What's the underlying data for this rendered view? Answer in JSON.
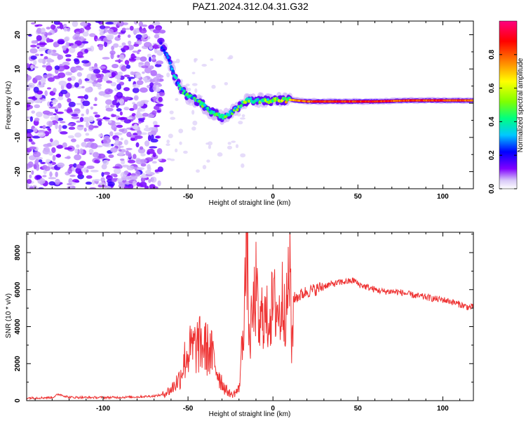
{
  "title": "PAZ1.2024.312.04.31.G32",
  "chart_data": [
    {
      "type": "heatmap",
      "xlabel": "Height of straight line (km)",
      "ylabel": "Frequency (Hz)",
      "xlim": [
        -145,
        118
      ],
      "ylim": [
        -25,
        24
      ],
      "x_ticks": [
        -100,
        -50,
        0,
        50,
        100
      ],
      "x_tick_labels": [
        "-100",
        "-50",
        "0",
        "50",
        "100"
      ],
      "y_ticks": [
        -20,
        -10,
        0,
        10,
        20
      ],
      "y_tick_labels": [
        "-20",
        "-10",
        "0",
        "10",
        "20"
      ],
      "colorbar": {
        "label": "Normalized spectral amplitude",
        "range": [
          0,
          1
        ],
        "ticks": [
          0.0,
          0.2,
          0.4,
          0.6,
          0.8
        ],
        "tick_labels": [
          "0.0",
          "0.2",
          "0.4",
          "0.6",
          "0.8"
        ],
        "colormap": [
          "#ffffff",
          "#d8c8f8",
          "#8000ff",
          "#0000ff",
          "#00c8ff",
          "#00ff80",
          "#80ff00",
          "#ffff00",
          "#ff8000",
          "#ff0000",
          "#ff0080"
        ]
      },
      "ridge": {
        "x": [
          -66,
          -62,
          -58,
          -54,
          -50,
          -46,
          -42,
          -38,
          -34,
          -30,
          -26,
          -22,
          -18,
          -14,
          -10,
          -6,
          -2,
          2,
          6,
          10,
          20,
          40,
          60,
          80,
          100,
          118
        ],
        "frequency": [
          17,
          14,
          8,
          4,
          2,
          1,
          0,
          -2,
          -3,
          -4,
          -3,
          -2,
          0,
          1,
          0.5,
          1,
          0.5,
          1,
          0.8,
          1,
          0.5,
          0.5,
          0.5,
          0.8,
          0.8,
          0.8
        ],
        "amplitude": [
          0.2,
          0.25,
          0.3,
          0.4,
          0.4,
          0.45,
          0.45,
          0.4,
          0.4,
          0.45,
          0.4,
          0.45,
          0.5,
          0.55,
          0.5,
          0.5,
          0.55,
          0.55,
          0.6,
          0.7,
          0.85,
          0.9,
          0.9,
          0.85,
          0.9,
          0.8
        ]
      },
      "noise_region_x": [
        -145,
        -65
      ]
    },
    {
      "type": "line",
      "xlabel": "Height of straight line (km)",
      "ylabel": "SNR (10 * v/v)",
      "xlim": [
        -145,
        118
      ],
      "ylim": [
        0,
        9100
      ],
      "x_ticks": [
        -100,
        -50,
        0,
        50,
        100
      ],
      "x_tick_labels": [
        "-100",
        "-50",
        "0",
        "50",
        "100"
      ],
      "y_ticks": [
        0,
        2000,
        4000,
        6000,
        8000
      ],
      "y_tick_labels": [
        "0",
        "2000",
        "4000",
        "6000",
        "8000"
      ],
      "series": [
        {
          "color": "#ee3333",
          "x": [
            -145,
            -140,
            -130,
            -126,
            -120,
            -110,
            -100,
            -90,
            -80,
            -70,
            -65,
            -60,
            -55,
            -52,
            -50,
            -47,
            -44,
            -40,
            -36,
            -32,
            -28,
            -24,
            -20,
            -18,
            -16,
            -15,
            -14,
            -12,
            -10,
            -8,
            -6,
            -4,
            -2,
            0,
            2,
            4,
            6,
            8,
            10,
            11,
            12,
            14,
            16,
            18,
            20,
            25,
            30,
            35,
            40,
            45,
            48,
            50,
            55,
            60,
            65,
            70,
            75,
            80,
            85,
            90,
            95,
            100,
            105,
            110,
            115,
            118
          ],
          "y": [
            150,
            150,
            170,
            350,
            180,
            170,
            170,
            180,
            200,
            250,
            320,
            600,
            1200,
            2200,
            2600,
            2800,
            3000,
            2900,
            2500,
            1400,
            600,
            300,
            600,
            3200,
            7000,
            9000,
            3000,
            4500,
            6000,
            3500,
            5000,
            4200,
            4800,
            5000,
            5200,
            4500,
            5800,
            4800,
            7500,
            2500,
            5500,
            5600,
            5700,
            5800,
            5900,
            6000,
            6200,
            6300,
            6400,
            6450,
            6500,
            6300,
            6150,
            6000,
            5900,
            5900,
            5850,
            5750,
            5650,
            5600,
            5500,
            5450,
            5350,
            5200,
            5050,
            5050
          ]
        }
      ]
    }
  ]
}
